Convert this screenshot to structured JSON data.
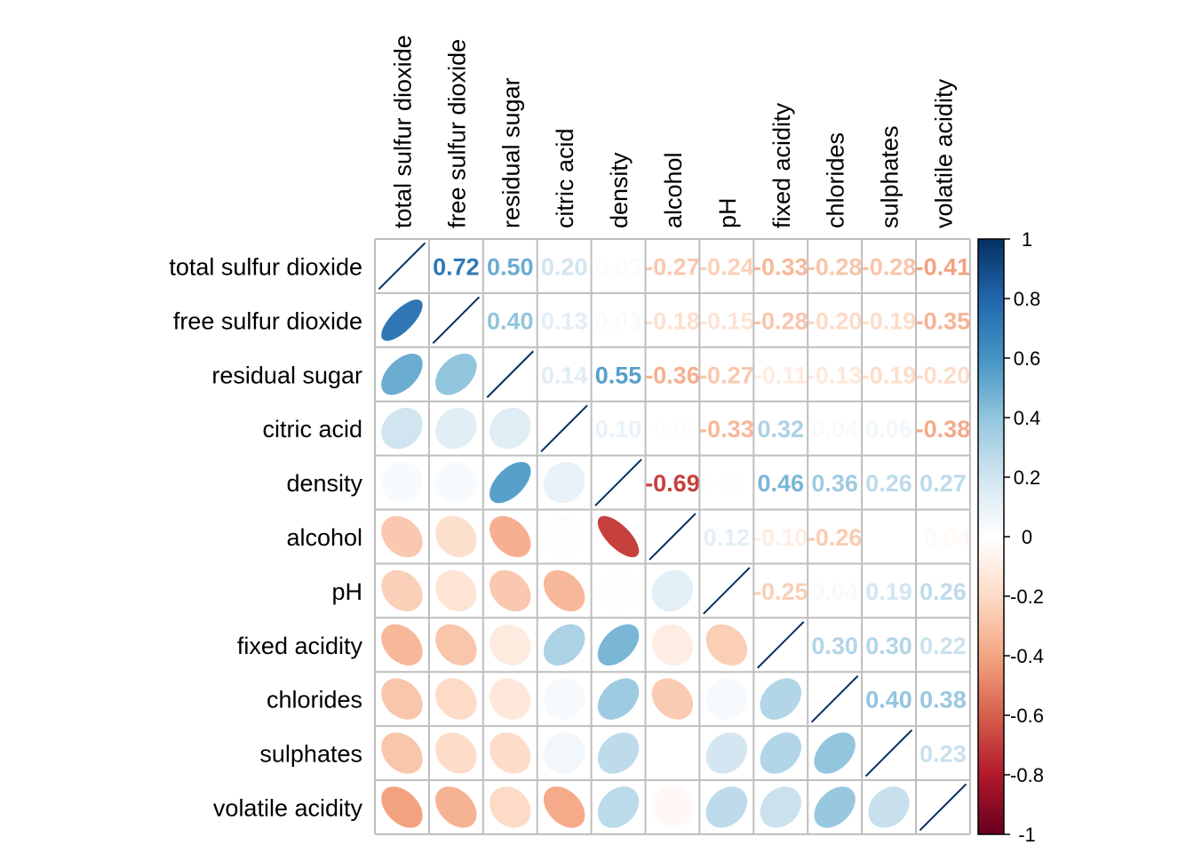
{
  "chart_data": {
    "type": "heatmap",
    "title": "",
    "subtype": "correlation-matrix (lower: ellipse, upper: number)",
    "variables": [
      "total sulfur dioxide",
      "free sulfur dioxide",
      "residual sugar",
      "citric acid",
      "density",
      "alcohol",
      "pH",
      "fixed acidity",
      "chlorides",
      "sulphates",
      "volatile acidity"
    ],
    "matrix": [
      [
        1.0,
        0.72,
        0.5,
        0.2,
        0.03,
        -0.27,
        -0.24,
        -0.33,
        -0.28,
        -0.28,
        -0.41
      ],
      [
        0.72,
        1.0,
        0.4,
        0.13,
        0.03,
        -0.18,
        -0.15,
        -0.28,
        -0.2,
        -0.19,
        -0.35
      ],
      [
        0.5,
        0.4,
        1.0,
        0.14,
        0.55,
        -0.36,
        -0.27,
        -0.11,
        -0.13,
        -0.19,
        -0.2
      ],
      [
        0.2,
        0.13,
        0.14,
        1.0,
        0.1,
        -0.01,
        -0.33,
        0.32,
        0.04,
        0.06,
        -0.38
      ],
      [
        0.03,
        0.03,
        0.55,
        0.1,
        1.0,
        -0.69,
        0.01,
        0.46,
        0.36,
        0.26,
        0.27
      ],
      [
        -0.27,
        -0.18,
        -0.36,
        -0.01,
        -0.69,
        1.0,
        0.12,
        -0.1,
        -0.26,
        -0.0,
        -0.04
      ],
      [
        -0.24,
        -0.15,
        -0.27,
        -0.33,
        0.01,
        0.12,
        1.0,
        -0.25,
        0.04,
        0.19,
        0.26
      ],
      [
        -0.33,
        -0.28,
        -0.11,
        0.32,
        0.46,
        -0.1,
        -0.25,
        1.0,
        0.3,
        0.3,
        0.22
      ],
      [
        -0.28,
        -0.2,
        -0.13,
        0.04,
        0.36,
        -0.26,
        0.04,
        0.3,
        1.0,
        0.4,
        0.38
      ],
      [
        -0.28,
        -0.19,
        -0.19,
        0.06,
        0.26,
        -0.0,
        0.19,
        0.3,
        0.4,
        1.0,
        0.23
      ],
      [
        -0.41,
        -0.35,
        -0.2,
        -0.38,
        0.27,
        -0.04,
        0.26,
        0.22,
        0.38,
        0.23,
        1.0
      ]
    ],
    "colorbar": {
      "range": [
        -1,
        1
      ],
      "ticks": [
        "1",
        "0.8",
        "0.6",
        "0.4",
        "0.2",
        "0",
        "-0.2",
        "-0.4",
        "-0.6",
        "-0.8",
        "-1"
      ],
      "colors": [
        "#67001F",
        "#B2182B",
        "#D6604D",
        "#F4A582",
        "#FDDBC7",
        "#FFFFFF",
        "#D1E5F0",
        "#92C5DE",
        "#4393C3",
        "#2166AC",
        "#053061"
      ]
    },
    "legend": "right",
    "grid": true
  }
}
